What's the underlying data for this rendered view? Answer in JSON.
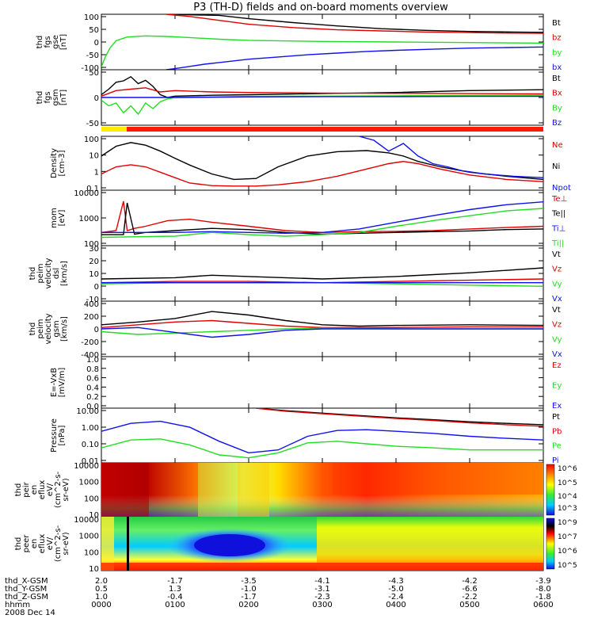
{
  "title": "P3 (TH-D) fields and on-board moments overview",
  "colors": {
    "black": "#000000",
    "red": "#e00000",
    "green": "#22dd22",
    "blue": "#1010ee",
    "yellow": "#ffee00",
    "redbar": "#ff1a00"
  },
  "chart_data": [
    {
      "type": "line",
      "panel": "fgs-gse",
      "ylabel": [
        "thd",
        "fgs",
        "gse",
        "[nT]"
      ],
      "yticks": [
        "100",
        "50",
        "0",
        "-50",
        "-100"
      ],
      "ylim": [
        -100,
        100
      ],
      "series": [
        {
          "name": "Bt",
          "color": "black",
          "x": [
            0.9,
            1.2,
            1.6,
            2.0,
            2.6,
            3.2,
            3.8,
            4.4,
            5.0,
            5.6,
            6.0
          ],
          "y": [
            100,
            98,
            96,
            84,
            70,
            58,
            48,
            42,
            38,
            36,
            35
          ]
        },
        {
          "name": "bz",
          "color": "red",
          "x": [
            0.88,
            1.2,
            1.6,
            2.0,
            2.6,
            3.2,
            3.8,
            4.4,
            5.0,
            5.6,
            6.0
          ],
          "y": [
            100,
            92,
            78,
            64,
            52,
            44,
            40,
            36,
            34,
            32,
            31
          ]
        },
        {
          "name": "by",
          "color": "green",
          "x": [
            0,
            0.05,
            0.12,
            0.2,
            0.35,
            0.6,
            0.9,
            1.2,
            1.6,
            2.0,
            3.0,
            4.0,
            5.0,
            6.0
          ],
          "y": [
            -90,
            -55,
            -20,
            5,
            18,
            22,
            20,
            16,
            10,
            6,
            2,
            0,
            -2,
            -4
          ]
        },
        {
          "name": "bx",
          "color": "blue",
          "x": [
            0.88,
            1.0,
            1.2,
            1.4,
            1.6,
            1.8,
            2.0,
            2.4,
            2.8,
            3.2,
            3.6,
            4.0,
            4.5,
            5.0,
            5.5,
            6.0
          ],
          "y": [
            -100,
            -96,
            -88,
            -80,
            -74,
            -68,
            -62,
            -54,
            -46,
            -40,
            -34,
            -30,
            -26,
            -22,
            -20,
            -18
          ]
        }
      ]
    },
    {
      "type": "line",
      "panel": "fgs-gsm",
      "ylabel": [
        "thd",
        "fgs",
        "gsm",
        "[nT]"
      ],
      "yticks": [
        "50",
        "0",
        "-50"
      ],
      "ylim": [
        -100,
        100
      ],
      "series": [
        {
          "name": "Bt",
          "color": "black",
          "x": [
            0,
            0.1,
            0.2,
            0.3,
            0.4,
            0.5,
            0.6,
            0.7,
            0.8,
            0.9,
            1.0,
            1.5,
            2.0,
            3.0,
            4.0,
            5.0,
            6.0
          ],
          "y": [
            10,
            30,
            55,
            60,
            75,
            50,
            62,
            40,
            10,
            0,
            5,
            8,
            10,
            14,
            18,
            25,
            28
          ]
        },
        {
          "name": "Bx",
          "color": "red",
          "x": [
            0,
            0.2,
            0.4,
            0.6,
            0.8,
            1.0,
            1.5,
            2.0,
            3.0,
            4.0,
            5.0,
            6.0
          ],
          "y": [
            5,
            25,
            30,
            35,
            20,
            25,
            20,
            18,
            16,
            15,
            14,
            13
          ]
        },
        {
          "name": "By",
          "color": "green",
          "x": [
            0,
            0.1,
            0.2,
            0.3,
            0.4,
            0.5,
            0.6,
            0.7,
            0.8,
            0.9,
            1.0,
            1.5,
            2.0,
            3.0,
            4.0,
            5.0,
            6.0
          ],
          "y": [
            -10,
            -30,
            -20,
            -55,
            -30,
            -60,
            -20,
            -40,
            -15,
            -5,
            0,
            2,
            4,
            5,
            6,
            7,
            8
          ]
        },
        {
          "name": "Bz",
          "color": "blue",
          "x": [
            0,
            1,
            2,
            3,
            4,
            5,
            6
          ],
          "y": [
            0,
            0,
            2,
            3,
            3,
            4,
            4
          ]
        }
      ]
    },
    {
      "type": "line",
      "panel": "density",
      "ylabel": [
        "Density",
        "[cm-3]"
      ],
      "yticks": [
        "100",
        "10",
        "1",
        "0.1"
      ],
      "ylim": [
        0.1,
        100
      ],
      "scale": "log",
      "series": [
        {
          "name": "Ne",
          "color": "red",
          "x": [
            0,
            0.2,
            0.4,
            0.6,
            0.8,
            1.0,
            1.2,
            1.5,
            1.8,
            2.1,
            2.4,
            2.8,
            3.2,
            3.6,
            3.9,
            4.1,
            4.3,
            4.6,
            5.0,
            5.5,
            6.0
          ],
          "y": [
            0.8,
            2.0,
            2.6,
            2.0,
            1.0,
            0.5,
            0.25,
            0.18,
            0.17,
            0.17,
            0.2,
            0.3,
            0.6,
            1.5,
            3,
            4,
            3,
            1.5,
            0.7,
            0.4,
            0.3
          ]
        },
        {
          "name": "Ni",
          "color": "black",
          "x": [
            0,
            0.2,
            0.4,
            0.6,
            0.8,
            1.0,
            1.2,
            1.5,
            1.8,
            2.1,
            2.4,
            2.8,
            3.2,
            3.6,
            3.9,
            4.1,
            4.3,
            4.6,
            5.0,
            5.5,
            6.0
          ],
          "y": [
            8,
            28,
            45,
            32,
            15,
            6,
            2.5,
            0.8,
            0.4,
            0.45,
            2,
            8,
            14,
            16,
            12,
            8,
            4,
            2,
            1,
            0.6,
            0.4
          ]
        },
        {
          "name": "Npot",
          "color": "blue",
          "x": [
            3.5,
            3.7,
            3.9,
            4.1,
            4.3,
            4.5,
            4.7,
            4.9,
            5.2,
            5.6,
            6.0
          ],
          "y": [
            100,
            60,
            15,
            40,
            8,
            3,
            2,
            1.2,
            0.8,
            0.6,
            0.5
          ]
        }
      ]
    },
    {
      "type": "line",
      "panel": "mom-temp",
      "ylabel": [
        "mom",
        "[eV]"
      ],
      "yticks": [
        "10000",
        "1000",
        "100"
      ],
      "ylim": [
        100,
        10000
      ],
      "scale": "log",
      "series": [
        {
          "name": "Te⊥",
          "color": "red",
          "x": [
            0,
            0.2,
            0.3,
            0.35,
            0.45,
            0.6,
            0.9,
            1.2,
            1.5,
            2.0,
            2.5,
            3.0,
            3.5,
            4.0,
            4.5,
            5.0,
            5.5,
            6.0
          ],
          "y": [
            300,
            350,
            4000,
            350,
            420,
            500,
            800,
            900,
            700,
            500,
            350,
            300,
            320,
            330,
            350,
            400,
            450,
            500
          ]
        },
        {
          "name": "Te||",
          "color": "black",
          "x": [
            0,
            0.3,
            0.35,
            0.45,
            0.6,
            1.0,
            1.5,
            2.0,
            2.5,
            3.0,
            3.5,
            4.0,
            4.5,
            5.0,
            5.5,
            6.0
          ],
          "y": [
            250,
            250,
            3500,
            260,
            300,
            350,
            420,
            380,
            300,
            260,
            280,
            300,
            320,
            340,
            380,
            400
          ]
        },
        {
          "name": "Ti⊥",
          "color": "blue",
          "x": [
            0,
            0.5,
            1.0,
            1.5,
            2.0,
            2.5,
            3.0,
            3.5,
            4.0,
            4.5,
            5.0,
            5.5,
            6.0
          ],
          "y": [
            300,
            300,
            300,
            320,
            300,
            280,
            300,
            400,
            700,
            1200,
            2000,
            3000,
            3800
          ]
        },
        {
          "name": "Ti||",
          "color": "green",
          "x": [
            0,
            0.5,
            1.0,
            1.5,
            2.0,
            2.5,
            3.0,
            3.5,
            4.0,
            4.5,
            5.0,
            5.5,
            6.0
          ],
          "y": [
            200,
            210,
            220,
            300,
            250,
            220,
            250,
            300,
            500,
            800,
            1200,
            1800,
            2200
          ]
        }
      ]
    },
    {
      "type": "line",
      "panel": "peim-velocity-dsl",
      "ylabel": [
        "thd",
        "peim",
        "velocity",
        "dsl",
        "[km/s]"
      ],
      "yticks": [
        "30",
        "20",
        "10",
        "0",
        "-10"
      ],
      "ylim": [
        -15,
        30
      ],
      "series": [
        {
          "name": "Vt",
          "color": "black",
          "x": [
            0,
            1,
            1.5,
            2,
            3,
            4,
            5,
            6
          ],
          "y": [
            3,
            4,
            6,
            5,
            3,
            5,
            8,
            12
          ]
        },
        {
          "name": "Vz",
          "color": "red",
          "x": [
            0,
            1,
            2,
            3,
            4,
            5,
            6
          ],
          "y": [
            0,
            1,
            1,
            0,
            1,
            2,
            3
          ]
        },
        {
          "name": "Vy",
          "color": "green",
          "x": [
            0,
            1,
            2,
            3,
            4,
            5,
            6
          ],
          "y": [
            -1,
            0,
            0,
            0,
            -1,
            -2,
            -3
          ]
        },
        {
          "name": "Vx",
          "color": "blue",
          "x": [
            0,
            1,
            2,
            3,
            4,
            5,
            6
          ],
          "y": [
            0,
            0,
            0,
            0,
            0,
            0,
            0
          ]
        }
      ]
    },
    {
      "type": "line",
      "panel": "peim-velocity-gsm",
      "ylabel": [
        "thd",
        "peim",
        "velocity",
        "gsm",
        "[km/s]"
      ],
      "yticks": [
        "400",
        "200",
        "0",
        "-200",
        "-400"
      ],
      "ylim": [
        -400,
        400
      ],
      "series": [
        {
          "name": "Vt",
          "color": "black",
          "x": [
            0,
            0.5,
            1,
            1.5,
            2,
            2.5,
            3,
            3.5,
            4,
            5,
            6
          ],
          "y": [
            60,
            100,
            150,
            250,
            200,
            120,
            60,
            40,
            50,
            60,
            50
          ]
        },
        {
          "name": "Vz",
          "color": "red",
          "x": [
            0,
            0.5,
            1,
            1.5,
            2,
            2.5,
            3,
            4,
            5,
            6
          ],
          "y": [
            20,
            60,
            100,
            120,
            80,
            40,
            20,
            20,
            30,
            30
          ]
        },
        {
          "name": "Vy",
          "color": "green",
          "x": [
            0,
            0.5,
            1,
            1.5,
            2,
            2.5,
            3,
            4,
            5,
            6
          ],
          "y": [
            -40,
            -80,
            -60,
            -40,
            -20,
            0,
            10,
            0,
            0,
            0
          ]
        },
        {
          "name": "Vx",
          "color": "blue",
          "x": [
            0,
            0.5,
            1,
            1.5,
            2,
            2.5,
            3,
            4,
            5,
            6
          ],
          "y": [
            0,
            20,
            -50,
            -120,
            -80,
            -20,
            0,
            0,
            0,
            0
          ]
        }
      ]
    },
    {
      "type": "line",
      "panel": "efield",
      "ylabel": [
        "E=-VxB",
        "[mV/m]"
      ],
      "yticks": [
        "1.0",
        "0.8",
        "0.6",
        "0.4",
        "0.2",
        "0.0"
      ],
      "ylim": [
        0,
        1
      ],
      "series": [
        {
          "name": "Ez",
          "color": "red",
          "x": [],
          "y": []
        },
        {
          "name": "Ey",
          "color": "green",
          "x": [],
          "y": []
        },
        {
          "name": "Ex",
          "color": "blue",
          "x": [],
          "y": []
        }
      ]
    },
    {
      "type": "line",
      "panel": "pressure",
      "ylabel": [
        "Pressure",
        "[nPa]"
      ],
      "yticks": [
        "10.00",
        "1.00",
        "0.10",
        "0.01"
      ],
      "ylim": [
        0.005,
        10
      ],
      "scale": "log",
      "series": [
        {
          "name": "Pt",
          "color": "black",
          "x": [
            2.1,
            2.5,
            3.0,
            3.5,
            4.0,
            4.5,
            5.0,
            5.5,
            6.0
          ],
          "y": [
            10,
            7,
            5,
            3.6,
            2.6,
            2.0,
            1.5,
            1.2,
            1.0
          ]
        },
        {
          "name": "Pb",
          "color": "red",
          "x": [
            2.1,
            2.5,
            3.0,
            3.5,
            4.0,
            4.5,
            5.0,
            5.5,
            6.0
          ],
          "y": [
            10,
            6.5,
            4.6,
            3.3,
            2.4,
            1.8,
            1.3,
            1.0,
            0.8
          ]
        },
        {
          "name": "Pe",
          "color": "green",
          "x": [
            0,
            0.4,
            0.8,
            1.2,
            1.6,
            2.0,
            2.4,
            2.8,
            3.2,
            3.6,
            4.0,
            4.5,
            5.0,
            5.5,
            6.0
          ],
          "y": [
            0.04,
            0.12,
            0.14,
            0.06,
            0.015,
            0.01,
            0.02,
            0.08,
            0.1,
            0.07,
            0.05,
            0.04,
            0.03,
            0.03,
            0.03
          ]
        },
        {
          "name": "Pi",
          "color": "blue",
          "x": [
            0,
            0.4,
            0.8,
            1.2,
            1.6,
            2.0,
            2.4,
            2.8,
            3.2,
            3.6,
            4.0,
            4.5,
            5.0,
            5.5,
            6.0
          ],
          "y": [
            0.4,
            1.2,
            1.6,
            0.7,
            0.1,
            0.02,
            0.03,
            0.2,
            0.45,
            0.5,
            0.4,
            0.3,
            0.2,
            0.15,
            0.12
          ]
        }
      ]
    },
    {
      "type": "heatmap",
      "panel": "peir-en-eflux",
      "ylabel": [
        "thd",
        "peir",
        "en",
        "eflux",
        "eV/",
        "(cm^2-s-",
        "sr-eV)"
      ],
      "yticks": [
        "10000",
        "1000",
        "100",
        "10"
      ],
      "colorbar": {
        "ticks": [
          "10^6",
          "10^5",
          "10^4",
          "10^3"
        ]
      }
    },
    {
      "type": "heatmap",
      "panel": "peer-en-eflux",
      "ylabel": [
        "thd",
        "peer",
        "en",
        "eflux",
        "eV/",
        "(cm^2-s-",
        "sr-eV)"
      ],
      "yticks": [
        "10000",
        "1000",
        "100",
        "10"
      ],
      "colorbar": {
        "ticks": [
          "10^9",
          "10^7",
          "10^6",
          "10^5"
        ]
      }
    }
  ],
  "xaxis": {
    "hhmm": [
      "0000",
      "0100",
      "0200",
      "0300",
      "0400",
      "0500",
      "0600"
    ],
    "rows": [
      {
        "label": "thd_X-GSM",
        "values": [
          "2.0",
          "-1.7",
          "-3.5",
          "-4.1",
          "-4.3",
          "-4.2",
          "-3.9"
        ]
      },
      {
        "label": "thd_Y-GSM",
        "values": [
          "0.5",
          "1.3",
          "-1.0",
          "-3.1",
          "-5.0",
          "-6.6",
          "-8.0"
        ]
      },
      {
        "label": "thd_Z-GSM",
        "values": [
          "1.0",
          "-0.4",
          "-1.7",
          "-2.3",
          "-2.4",
          "-2.2",
          "-1.8"
        ]
      },
      {
        "label": "hhmm",
        "values": [
          "0000",
          "0100",
          "0200",
          "0300",
          "0400",
          "0500",
          "0600"
        ]
      }
    ],
    "date": "2008 Dec 14"
  }
}
